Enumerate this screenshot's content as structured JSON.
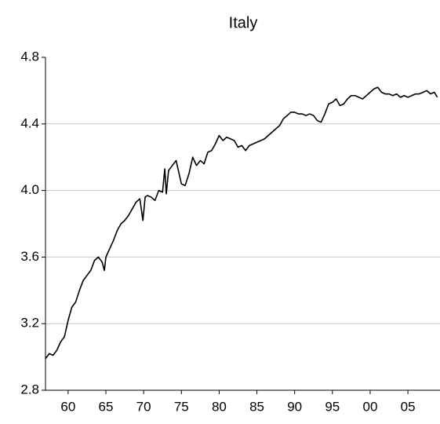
{
  "chart_data": {
    "type": "line",
    "title": "Italy",
    "color": "#000000",
    "grid": true,
    "x": [
      1957.0,
      1957.5,
      1958.0,
      1958.5,
      1959.0,
      1959.5,
      1960.0,
      1960.5,
      1961.0,
      1961.5,
      1962.0,
      1962.5,
      1963.0,
      1963.5,
      1964.0,
      1964.5,
      1964.8,
      1965.0,
      1965.5,
      1966.0,
      1966.5,
      1967.0,
      1967.5,
      1968.0,
      1968.5,
      1969.0,
      1969.5,
      1969.9,
      1970.2,
      1970.5,
      1971.0,
      1971.5,
      1972.0,
      1972.5,
      1972.8,
      1973.0,
      1973.3,
      1973.8,
      1974.3,
      1974.6,
      1975.0,
      1975.5,
      1976.0,
      1976.5,
      1977.0,
      1977.5,
      1978.0,
      1978.5,
      1979.0,
      1979.5,
      1980.0,
      1980.5,
      1981.0,
      1981.5,
      1982.0,
      1982.5,
      1983.0,
      1983.5,
      1984.0,
      1984.5,
      1985.0,
      1985.5,
      1986.0,
      1986.5,
      1987.0,
      1987.5,
      1988.0,
      1988.5,
      1989.0,
      1989.5,
      1990.0,
      1990.5,
      1991.0,
      1991.5,
      1992.0,
      1992.5,
      1993.0,
      1993.5,
      1994.0,
      1994.5,
      1995.0,
      1995.5,
      1996.0,
      1996.5,
      1997.0,
      1997.5,
      1998.0,
      1998.5,
      1999.0,
      1999.5,
      2000.0,
      2000.5,
      2001.0,
      2001.5,
      2002.0,
      2002.5,
      2003.0,
      2003.5,
      2004.0,
      2004.5,
      2005.0,
      2005.5,
      2006.0,
      2006.5,
      2007.0,
      2007.5,
      2008.0,
      2008.5,
      2008.9
    ],
    "values": [
      2.99,
      3.02,
      3.01,
      3.04,
      3.09,
      3.12,
      3.22,
      3.3,
      3.33,
      3.4,
      3.46,
      3.49,
      3.52,
      3.58,
      3.6,
      3.57,
      3.52,
      3.6,
      3.65,
      3.7,
      3.76,
      3.8,
      3.82,
      3.85,
      3.89,
      3.93,
      3.95,
      3.82,
      3.96,
      3.97,
      3.96,
      3.94,
      4.0,
      3.99,
      4.13,
      3.98,
      4.12,
      4.15,
      4.18,
      4.12,
      4.04,
      4.03,
      4.1,
      4.2,
      4.15,
      4.18,
      4.16,
      4.23,
      4.24,
      4.28,
      4.33,
      4.3,
      4.32,
      4.31,
      4.3,
      4.26,
      4.27,
      4.24,
      4.27,
      4.28,
      4.29,
      4.3,
      4.31,
      4.33,
      4.35,
      4.37,
      4.39,
      4.43,
      4.45,
      4.47,
      4.47,
      4.46,
      4.46,
      4.45,
      4.46,
      4.45,
      4.42,
      4.41,
      4.46,
      4.52,
      4.53,
      4.55,
      4.51,
      4.52,
      4.55,
      4.57,
      4.57,
      4.56,
      4.55,
      4.57,
      4.59,
      4.61,
      4.62,
      4.59,
      4.58,
      4.58,
      4.57,
      4.58,
      4.56,
      4.57,
      4.56,
      4.57,
      4.58,
      4.58,
      4.59,
      4.6,
      4.58,
      4.59,
      4.56
    ],
    "xlim": [
      1957,
      2009.25
    ],
    "xticks": [
      {
        "value": 1960,
        "label": "60"
      },
      {
        "value": 1965,
        "label": "65"
      },
      {
        "value": 1970,
        "label": "70"
      },
      {
        "value": 1975,
        "label": "75"
      },
      {
        "value": 1980,
        "label": "80"
      },
      {
        "value": 1985,
        "label": "85"
      },
      {
        "value": 1990,
        "label": "90"
      },
      {
        "value": 1995,
        "label": "95"
      },
      {
        "value": 2000,
        "label": "00"
      },
      {
        "value": 2005,
        "label": "05"
      }
    ],
    "ylim": [
      2.8,
      4.8
    ],
    "yticks": [
      {
        "value": 2.8,
        "label": "2.8"
      },
      {
        "value": 3.2,
        "label": "3.2"
      },
      {
        "value": 3.6,
        "label": "3.6"
      },
      {
        "value": 4.0,
        "label": "4.0"
      },
      {
        "value": 4.4,
        "label": "4.4"
      },
      {
        "value": 4.8,
        "label": "4.8"
      }
    ]
  }
}
